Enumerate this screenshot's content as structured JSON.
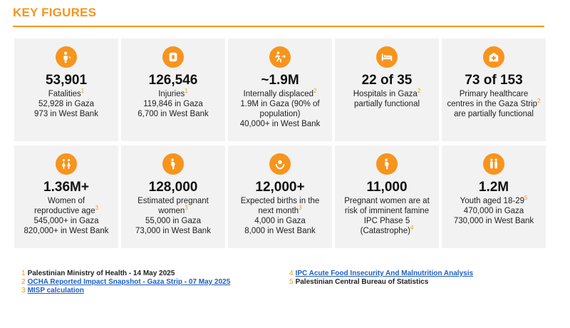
{
  "header": {
    "title": "KEY FIGURES"
  },
  "cards": [
    {
      "icon": "person-icon",
      "value": "53,901",
      "label": "Fatalities",
      "ref": "1",
      "lines": [
        "52,928 in Gaza",
        "973 in West Bank"
      ]
    },
    {
      "icon": "bandage-icon",
      "value": "126,546",
      "label": "Injuries",
      "ref": "1",
      "lines": [
        "119,846 in Gaza",
        "6,700 in West Bank"
      ]
    },
    {
      "icon": "running-person-icon",
      "value": "~1.9M",
      "label": "Internally displaced",
      "ref": "2",
      "lines": [
        "1.9M in Gaza (90% of",
        "population)",
        "40,000+ in West Bank"
      ]
    },
    {
      "icon": "hospital-bed-icon",
      "value": "22 of 35",
      "label": "Hospitals in Gaza",
      "ref": "2",
      "lines": [
        "partially functional"
      ]
    },
    {
      "icon": "health-centre-icon",
      "value": "73 of 153",
      "label": "Primary healthcare",
      "ref": "",
      "lines": [
        "centres in the Gaza Strip"
      ],
      "lines_ref": "2",
      "extra": "are partially functional"
    },
    {
      "icon": "women-icon",
      "value": "1.36M+",
      "label": "Women of",
      "ref": "",
      "lines": [
        "reproductive age"
      ],
      "lines_ref": "3",
      "extra2": [
        "545,000+ in Gaza",
        "820,000+ in West Bank"
      ]
    },
    {
      "icon": "pregnant-woman-icon",
      "value": "128,000",
      "label": "Estimated pregnant",
      "ref": "",
      "lines": [
        "women"
      ],
      "lines_ref": "3",
      "extra2": [
        "55,000 in Gaza",
        "73,000 in West Bank"
      ]
    },
    {
      "icon": "newborn-icon",
      "value": "12,000+",
      "label": "Expected births in the",
      "ref": "",
      "lines": [
        "next month"
      ],
      "lines_ref": "3",
      "extra2": [
        "4,000 in Gaza",
        "8,000 in West Bank"
      ]
    },
    {
      "icon": "pregnant-woman-icon",
      "value": "11,000",
      "label": "Pregnant women are at",
      "ref": "",
      "lines": [
        "risk of imminent famine",
        "IPC Phase 5",
        "(Catastrophe)"
      ],
      "lines_ref": "4"
    },
    {
      "icon": "youth-icon",
      "value": "1.2M",
      "label": "Youth aged 18-29",
      "ref": "5",
      "lines": [
        "470,000 in Gaza",
        "730,000 in West Bank"
      ]
    }
  ],
  "notes_left": [
    {
      "num": "1",
      "text": "Palestinian Ministry of Health - 14 May 2025",
      "link": false
    },
    {
      "num": "2",
      "text": "OCHA Reported Impact Snapshot - Gaza Strip - 07 May 2025",
      "link": true
    },
    {
      "num": "3",
      "text": "MISP calculation",
      "link": true
    }
  ],
  "notes_right": [
    {
      "num": "4",
      "text": "IPC Acute Food Insecurity And Malnutrition Analysis",
      "link": true
    },
    {
      "num": "5",
      "text": "Palestinian Central Bureau of Statistics",
      "link": false
    }
  ],
  "colors": {
    "accent": "#f7941d",
    "card_bg": "#f2f2f2",
    "link": "#1f5fbf"
  }
}
